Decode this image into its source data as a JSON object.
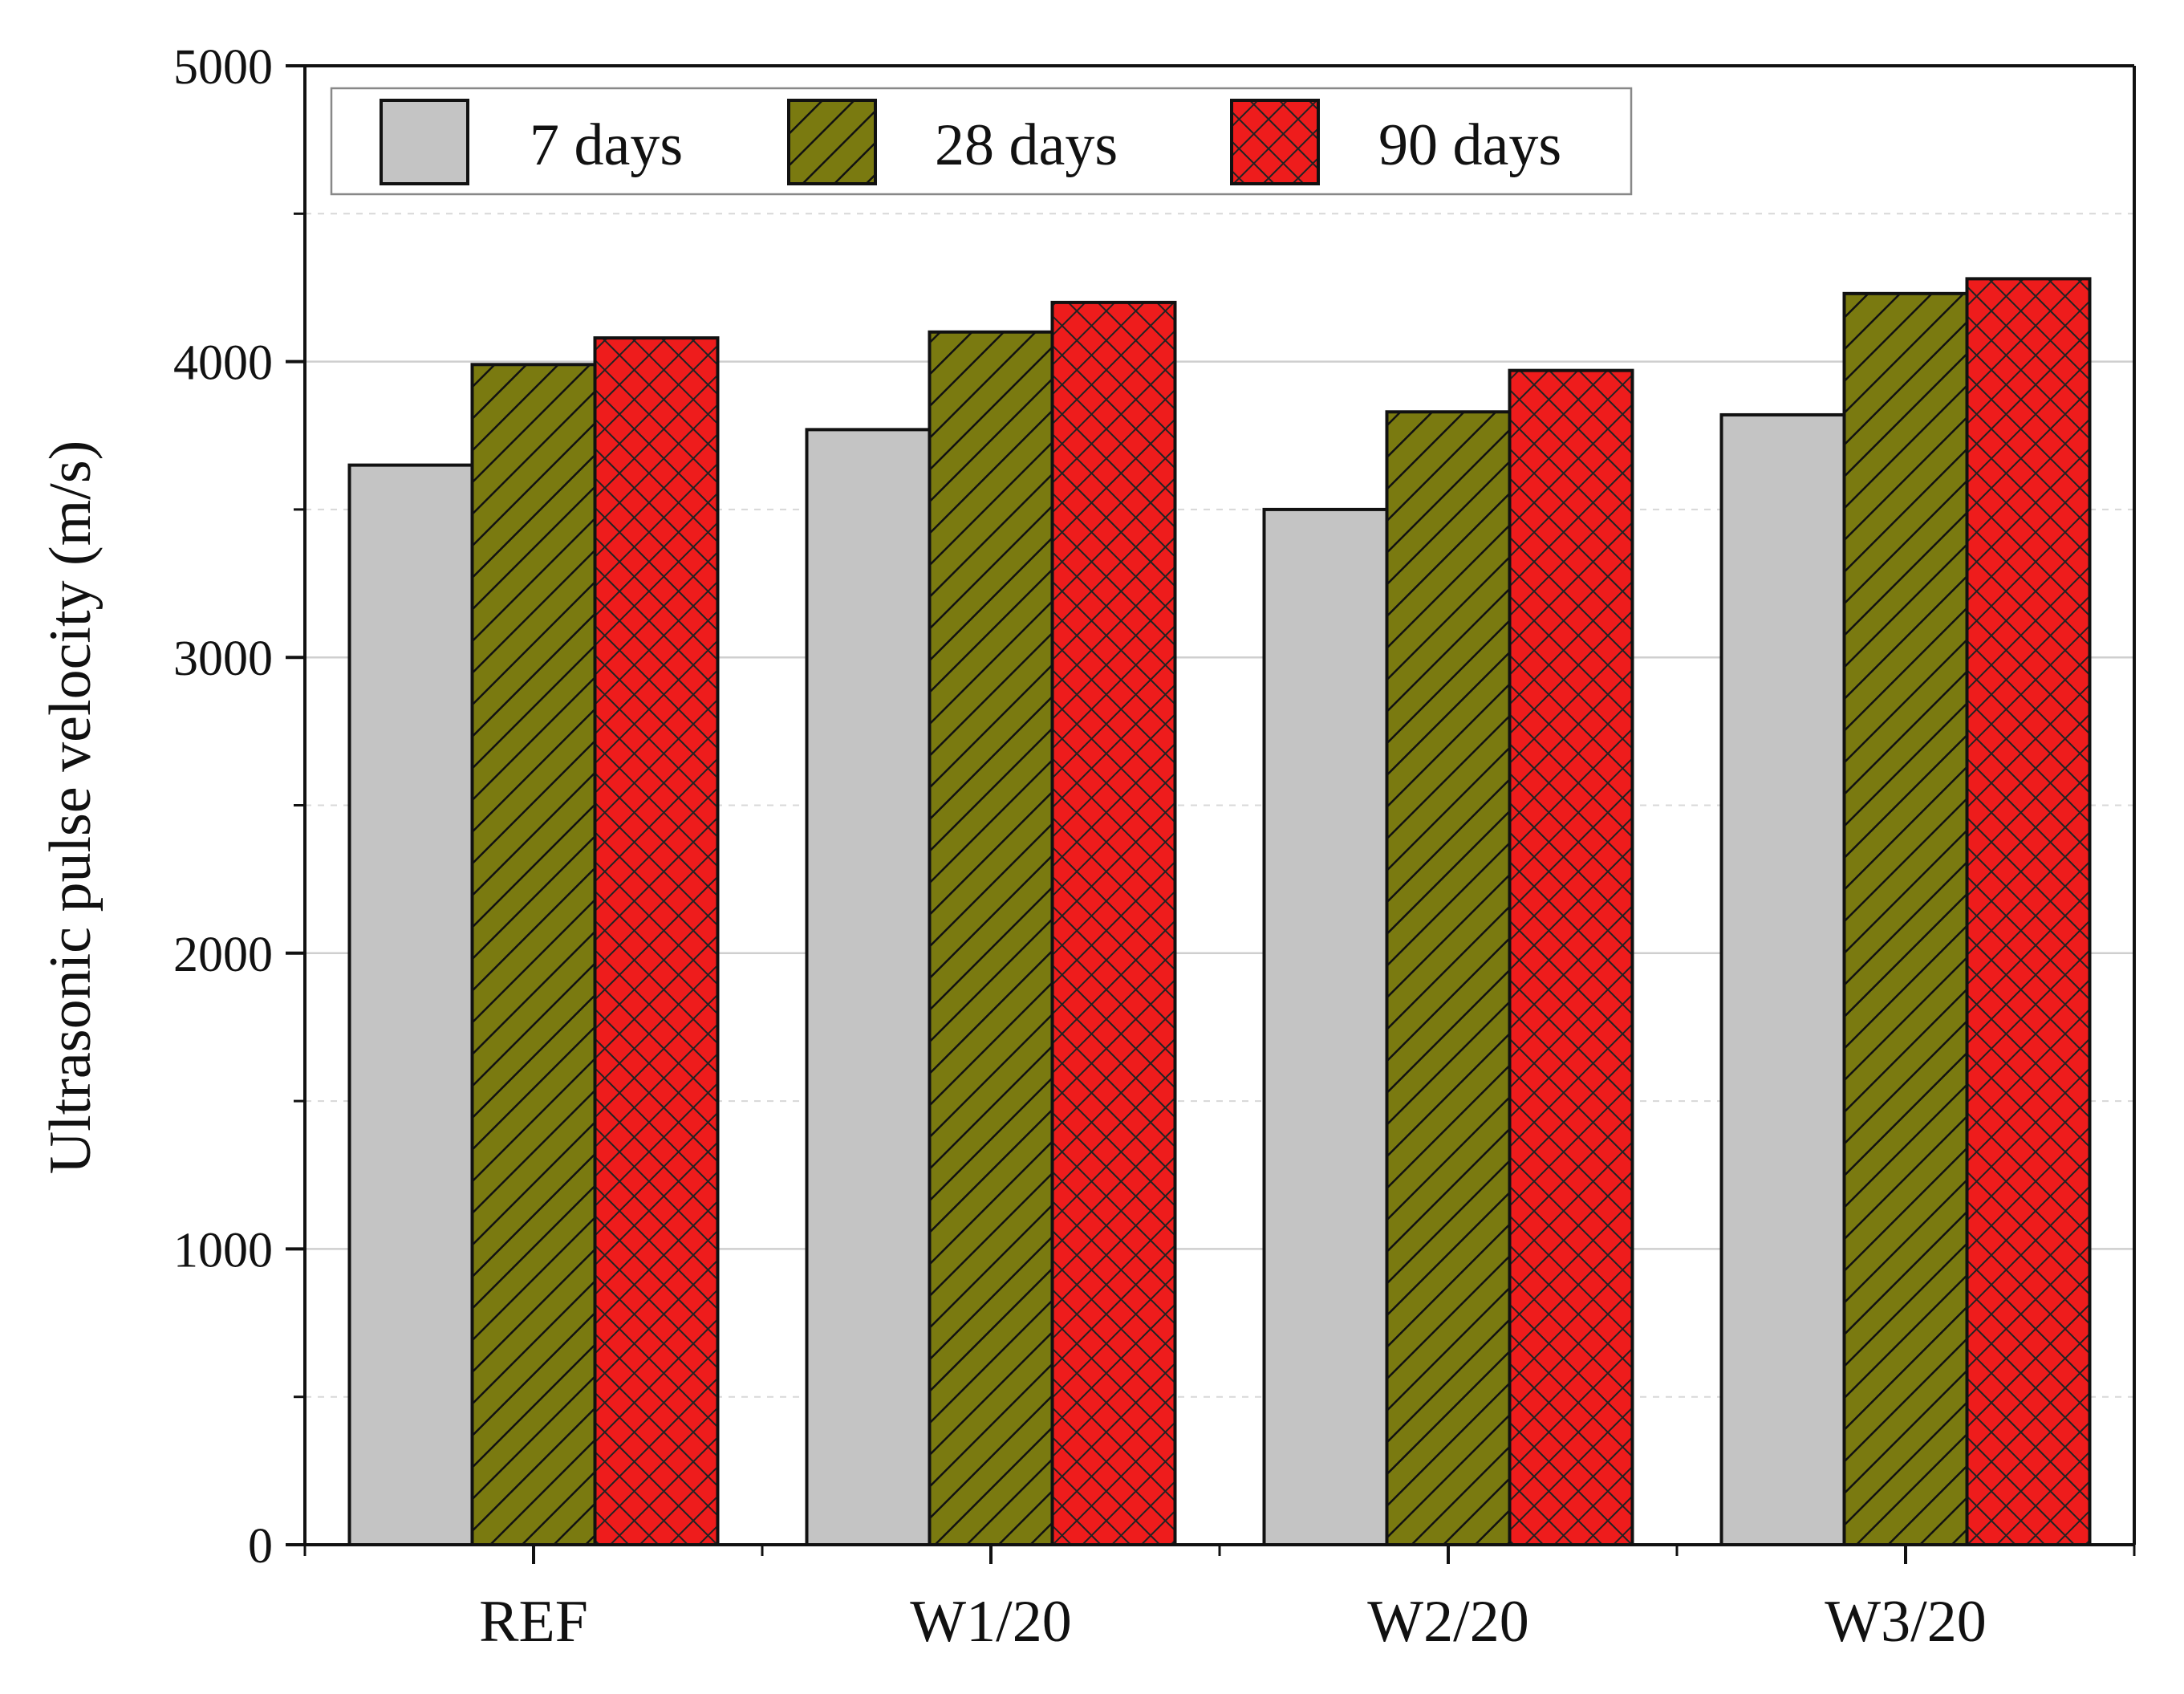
{
  "chart_data": {
    "type": "bar",
    "title": "",
    "xlabel": "",
    "ylabel": "Ultrasonic pulse velocity (m/s)",
    "ylim": [
      0,
      5000
    ],
    "yticks": [
      "0",
      "1000",
      "2000",
      "3000",
      "4000",
      "5000"
    ],
    "grid": true,
    "legend_position": "top-left",
    "categories": [
      "REF",
      "W1/20",
      "W2/20",
      "W3/20"
    ],
    "series": [
      {
        "name": "7 days",
        "values": [
          3650,
          3770,
          3500,
          3820
        ],
        "color": "#c4c4c4",
        "pattern": "solid"
      },
      {
        "name": "28 days",
        "values": [
          3990,
          4100,
          3830,
          4230
        ],
        "color": "#7a7a10",
        "pattern": "hatch"
      },
      {
        "name": "90 days",
        "values": [
          4080,
          4200,
          3970,
          4280
        ],
        "color": "#ee1c1c",
        "pattern": "crosshatch"
      }
    ]
  }
}
